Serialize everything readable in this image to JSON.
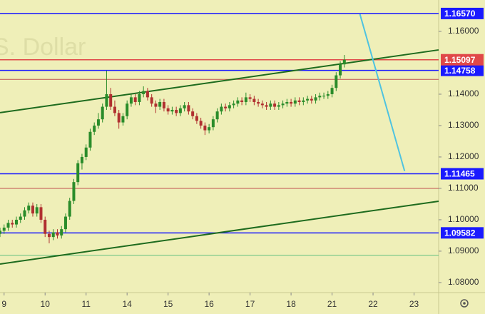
{
  "chart_data": {
    "type": "candlestick",
    "watermark": "S. Dollar",
    "xlim": [
      -0.1,
      10.6
    ],
    "ylim": [
      1.0768,
      1.17
    ],
    "xticks": [
      {
        "value": 0,
        "label": "9"
      },
      {
        "value": 1,
        "label": "10"
      },
      {
        "value": 2,
        "label": "11"
      },
      {
        "value": 3,
        "label": "14"
      },
      {
        "value": 4,
        "label": "15"
      },
      {
        "value": 5,
        "label": "16"
      },
      {
        "value": 6,
        "label": "17"
      },
      {
        "value": 7,
        "label": "18"
      },
      {
        "value": 8,
        "label": "21"
      },
      {
        "value": 9,
        "label": "22"
      },
      {
        "value": 10,
        "label": "23"
      }
    ],
    "yticks": [
      {
        "value": 1.16,
        "label": "1.16000"
      },
      {
        "value": 1.14,
        "label": "1.14000"
      },
      {
        "value": 1.13,
        "label": "1.13000"
      },
      {
        "value": 1.12,
        "label": "1.12000"
      },
      {
        "value": 1.11,
        "label": "1.11000"
      },
      {
        "value": 1.1,
        "label": "1.10000"
      },
      {
        "value": 1.09,
        "label": "1.09000"
      },
      {
        "value": 1.08,
        "label": "1.08000"
      }
    ],
    "up_color": "#2a8c2a",
    "down_color": "#b03030",
    "x": [
      -0.1,
      0,
      0.1,
      0.2,
      0.3,
      0.4,
      0.5,
      0.6,
      0.7,
      0.8,
      0.9,
      1,
      1.1,
      1.2,
      1.3,
      1.4,
      1.5,
      1.6,
      1.7,
      1.8,
      1.9,
      2,
      2.1,
      2.2,
      2.3,
      2.4,
      2.5,
      2.6,
      2.7,
      2.8,
      2.9,
      3,
      3.1,
      3.2,
      3.3,
      3.4,
      3.5,
      3.6,
      3.7,
      3.8,
      3.9,
      4,
      4.1,
      4.2,
      4.3,
      4.4,
      4.5,
      4.6,
      4.7,
      4.8,
      4.9,
      5,
      5.1,
      5.2,
      5.3,
      5.4,
      5.5,
      5.6,
      5.7,
      5.8,
      5.9,
      6,
      6.1,
      6.2,
      6.3,
      6.4,
      6.5,
      6.6,
      6.7,
      6.8,
      6.9,
      7,
      7.1,
      7.2,
      7.3,
      7.4,
      7.5,
      7.6,
      7.7,
      7.8,
      7.9,
      8,
      8.1,
      8.2,
      8.3
    ],
    "ohlc": [
      [
        1.0955,
        1.0975,
        1.0945,
        1.0965
      ],
      [
        1.0965,
        1.0985,
        1.0955,
        1.0975
      ],
      [
        1.0975,
        1.1,
        1.0965,
        1.099
      ],
      [
        1.099,
        1.1,
        1.0975,
        1.0985
      ],
      [
        1.0985,
        1.101,
        1.0975,
        1.1
      ],
      [
        1.1,
        1.102,
        1.099,
        1.101
      ],
      [
        1.101,
        1.104,
        1.1,
        1.103
      ],
      [
        1.103,
        1.1055,
        1.102,
        1.1045
      ],
      [
        1.1045,
        1.1055,
        1.101,
        1.102
      ],
      [
        1.102,
        1.105,
        1.101,
        1.104
      ],
      [
        1.104,
        1.105,
        1.099,
        1.1
      ],
      [
        1.1,
        1.101,
        1.0945,
        1.0955
      ],
      [
        1.0955,
        1.0965,
        1.0925,
        1.0945
      ],
      [
        1.0945,
        1.097,
        1.0935,
        1.096
      ],
      [
        1.096,
        1.097,
        1.094,
        1.095
      ],
      [
        1.095,
        1.098,
        1.094,
        1.097
      ],
      [
        1.097,
        1.102,
        1.096,
        1.101
      ],
      [
        1.101,
        1.107,
        1.1,
        1.106
      ],
      [
        1.106,
        1.113,
        1.105,
        1.112
      ],
      [
        1.112,
        1.119,
        1.111,
        1.118
      ],
      [
        1.118,
        1.121,
        1.116,
        1.12
      ],
      [
        1.12,
        1.124,
        1.119,
        1.123
      ],
      [
        1.123,
        1.129,
        1.122,
        1.128
      ],
      [
        1.128,
        1.131,
        1.127,
        1.13
      ],
      [
        1.13,
        1.134,
        1.129,
        1.132
      ],
      [
        1.132,
        1.137,
        1.131,
        1.136
      ],
      [
        1.136,
        1.1475,
        1.135,
        1.14
      ],
      [
        1.14,
        1.142,
        1.135,
        1.136
      ],
      [
        1.136,
        1.138,
        1.133,
        1.134
      ],
      [
        1.134,
        1.135,
        1.129,
        1.131
      ],
      [
        1.131,
        1.134,
        1.13,
        1.133
      ],
      [
        1.133,
        1.138,
        1.132,
        1.137
      ],
      [
        1.137,
        1.14,
        1.136,
        1.139
      ],
      [
        1.139,
        1.14,
        1.1365,
        1.1375
      ],
      [
        1.1375,
        1.141,
        1.1365,
        1.14
      ],
      [
        1.14,
        1.1425,
        1.139,
        1.141
      ],
      [
        1.141,
        1.142,
        1.138,
        1.139
      ],
      [
        1.139,
        1.14,
        1.136,
        1.137
      ],
      [
        1.137,
        1.138,
        1.134,
        1.136
      ],
      [
        1.136,
        1.1385,
        1.135,
        1.1375
      ],
      [
        1.1375,
        1.1385,
        1.1345,
        1.1355
      ],
      [
        1.1355,
        1.1365,
        1.1335,
        1.1345
      ],
      [
        1.1345,
        1.136,
        1.1335,
        1.135
      ],
      [
        1.135,
        1.136,
        1.133,
        1.134
      ],
      [
        1.134,
        1.1365,
        1.133,
        1.1355
      ],
      [
        1.1355,
        1.1375,
        1.1345,
        1.1365
      ],
      [
        1.1365,
        1.1375,
        1.1335,
        1.1345
      ],
      [
        1.1345,
        1.1355,
        1.132,
        1.133
      ],
      [
        1.133,
        1.134,
        1.1305,
        1.1315
      ],
      [
        1.1315,
        1.1325,
        1.129,
        1.13
      ],
      [
        1.13,
        1.131,
        1.127,
        1.1285
      ],
      [
        1.1285,
        1.1305,
        1.1275,
        1.1295
      ],
      [
        1.1295,
        1.133,
        1.1285,
        1.132
      ],
      [
        1.132,
        1.1355,
        1.131,
        1.1345
      ],
      [
        1.1345,
        1.137,
        1.1335,
        1.136
      ],
      [
        1.136,
        1.137,
        1.1345,
        1.1355
      ],
      [
        1.1355,
        1.1375,
        1.1345,
        1.1365
      ],
      [
        1.1365,
        1.138,
        1.1355,
        1.137
      ],
      [
        1.137,
        1.139,
        1.136,
        1.138
      ],
      [
        1.138,
        1.139,
        1.1365,
        1.1375
      ],
      [
        1.1375,
        1.1405,
        1.1365,
        1.139
      ],
      [
        1.139,
        1.14,
        1.1375,
        1.1385
      ],
      [
        1.1385,
        1.1395,
        1.1365,
        1.1375
      ],
      [
        1.1375,
        1.1385,
        1.136,
        1.137
      ],
      [
        1.137,
        1.138,
        1.1355,
        1.1365
      ],
      [
        1.1365,
        1.1375,
        1.135,
        1.136
      ],
      [
        1.136,
        1.138,
        1.135,
        1.137
      ],
      [
        1.137,
        1.138,
        1.135,
        1.136
      ],
      [
        1.136,
        1.1375,
        1.135,
        1.1365
      ],
      [
        1.1365,
        1.138,
        1.1355,
        1.137
      ],
      [
        1.137,
        1.1385,
        1.136,
        1.1375
      ],
      [
        1.1375,
        1.1385,
        1.136,
        1.137
      ],
      [
        1.137,
        1.139,
        1.136,
        1.138
      ],
      [
        1.138,
        1.139,
        1.1365,
        1.1375
      ],
      [
        1.1375,
        1.139,
        1.1365,
        1.138
      ],
      [
        1.138,
        1.1395,
        1.137,
        1.1385
      ],
      [
        1.1385,
        1.1395,
        1.137,
        1.138
      ],
      [
        1.138,
        1.14,
        1.137,
        1.139
      ],
      [
        1.139,
        1.1405,
        1.138,
        1.1395
      ],
      [
        1.1395,
        1.1405,
        1.1385,
        1.1395
      ],
      [
        1.1395,
        1.141,
        1.1385,
        1.14
      ],
      [
        1.14,
        1.143,
        1.139,
        1.142
      ],
      [
        1.142,
        1.147,
        1.141,
        1.146
      ],
      [
        1.146,
        1.1505,
        1.145,
        1.1495
      ],
      [
        1.1495,
        1.1525,
        1.1485,
        1.15097
      ]
    ],
    "levels": [
      {
        "value": 1.1657,
        "label": "1.16570",
        "color": "#1a1aff"
      },
      {
        "value": 1.14758,
        "label": "1.14758",
        "color": "#1a1aff"
      },
      {
        "value": 1.11465,
        "label": "1.11465",
        "color": "#1a1aff"
      },
      {
        "value": 1.09582,
        "label": "1.09582",
        "color": "#1a1aff"
      },
      {
        "value": 1.15097,
        "label": "1.15097",
        "color": "#e04848"
      }
    ],
    "thin_levels": [
      {
        "value": 1.1447,
        "color": "#c05050"
      },
      {
        "value": 1.11,
        "color": "#c05050"
      },
      {
        "value": 1.0887,
        "color": "#5fbf7f"
      }
    ],
    "lines": [
      {
        "x": [
          -0.1,
          10.6
        ],
        "y": [
          1.1341,
          1.1541
        ],
        "color": "#1e6b1e"
      },
      {
        "x": [
          -0.1,
          10.6
        ],
        "y": [
          1.0859,
          1.1059
        ],
        "color": "#1e6b1e"
      },
      {
        "x": [
          8.68,
          9.77
        ],
        "y": [
          1.1655,
          1.1155
        ],
        "color": "#4fc3e0"
      }
    ]
  }
}
